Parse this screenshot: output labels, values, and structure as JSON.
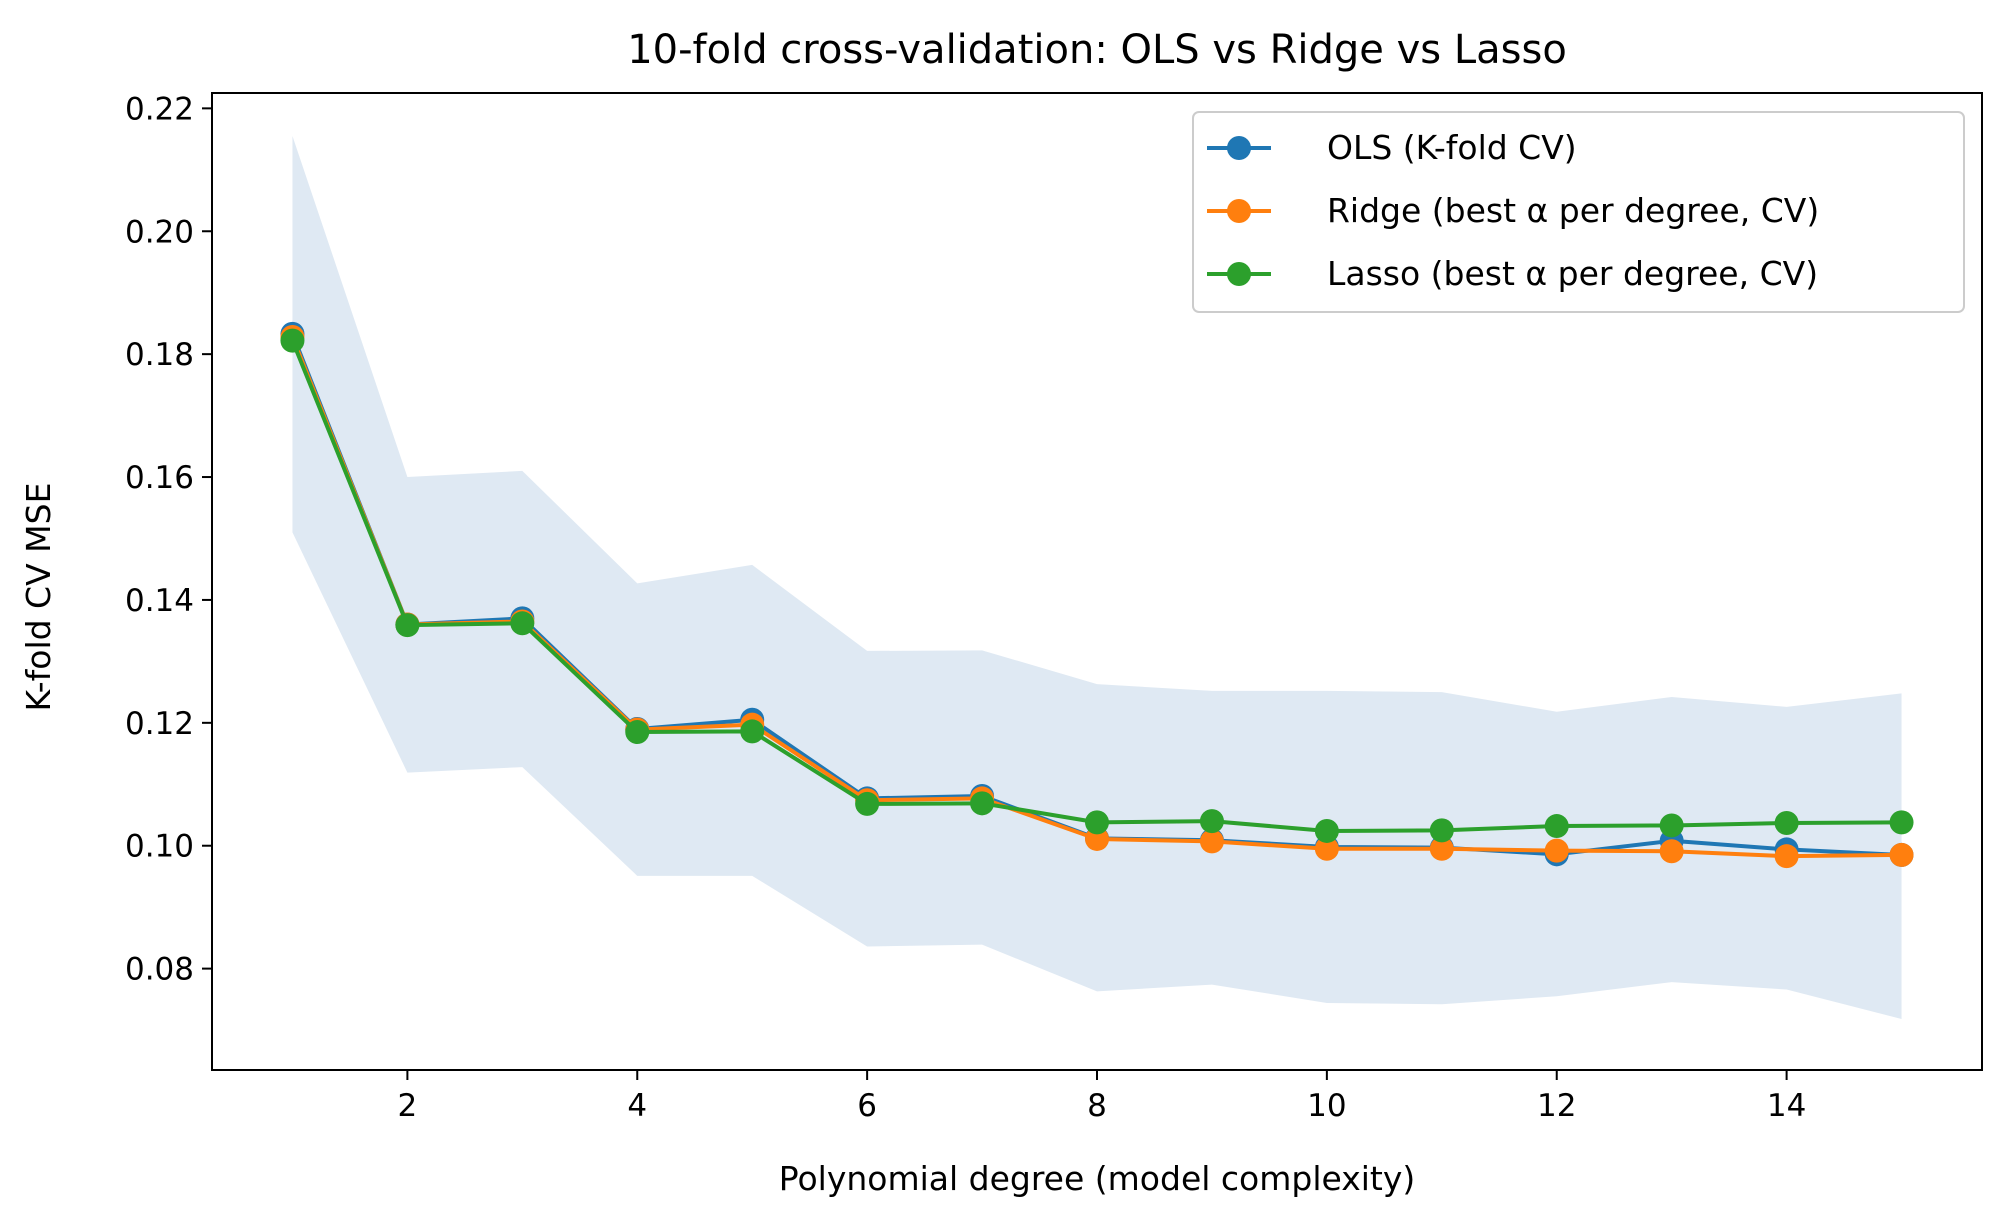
{
  "chart_data": {
    "type": "line",
    "title": "10-fold cross-validation: OLS vs Ridge vs Lasso",
    "xlabel": "Polynomial degree (model complexity)",
    "ylabel": "K-fold CV MSE",
    "xlim": [
      0.3,
      15.7
    ],
    "ylim": [
      0.0635,
      0.2225
    ],
    "xticks": [
      2,
      4,
      6,
      8,
      10,
      12,
      14
    ],
    "xtick_labels": [
      "2",
      "4",
      "6",
      "8",
      "10",
      "12",
      "14"
    ],
    "yticks": [
      0.08,
      0.1,
      0.12,
      0.14,
      0.16,
      0.18,
      0.2,
      0.22
    ],
    "ytick_labels": [
      "0.08",
      "0.10",
      "0.12",
      "0.14",
      "0.16",
      "0.18",
      "0.20",
      "0.22"
    ],
    "grid": false,
    "legend_position": "top-right",
    "x": [
      1,
      2,
      3,
      4,
      5,
      6,
      7,
      8,
      9,
      10,
      11,
      12,
      13,
      14,
      15
    ],
    "band": {
      "color": "#dfe9f3",
      "upper": [
        0.2155,
        0.16,
        0.161,
        0.1427,
        0.1457,
        0.1317,
        0.1318,
        0.1263,
        0.1252,
        0.1252,
        0.125,
        0.1218,
        0.1242,
        0.1226,
        0.1248
      ],
      "lower": [
        0.151,
        0.1119,
        0.1128,
        0.0951,
        0.0951,
        0.0836,
        0.0839,
        0.0763,
        0.0774,
        0.0744,
        0.0742,
        0.0755,
        0.0778,
        0.0766,
        0.0718
      ]
    },
    "series": [
      {
        "name": "OLS (K-fold CV)",
        "color": "#1f77b4",
        "values": [
          0.1833,
          0.136,
          0.137,
          0.119,
          0.1205,
          0.1077,
          0.1081,
          0.1012,
          0.1009,
          0.0998,
          0.0997,
          0.0986,
          0.1008,
          0.0994,
          0.0985
        ]
      },
      {
        "name": "Ridge (best α per degree, CV)",
        "color": "#ff7f0e",
        "values": [
          0.1828,
          0.136,
          0.1365,
          0.1189,
          0.1197,
          0.1074,
          0.1077,
          0.1011,
          0.1007,
          0.0995,
          0.0995,
          0.0992,
          0.0991,
          0.0983,
          0.0985
        ]
      },
      {
        "name": "Lasso (best α per degree, CV)",
        "color": "#2ca02c",
        "values": [
          0.1822,
          0.1359,
          0.1362,
          0.1185,
          0.1186,
          0.1068,
          0.1069,
          0.1038,
          0.104,
          0.1024,
          0.1025,
          0.1032,
          0.1033,
          0.1037,
          0.1038
        ]
      }
    ]
  }
}
